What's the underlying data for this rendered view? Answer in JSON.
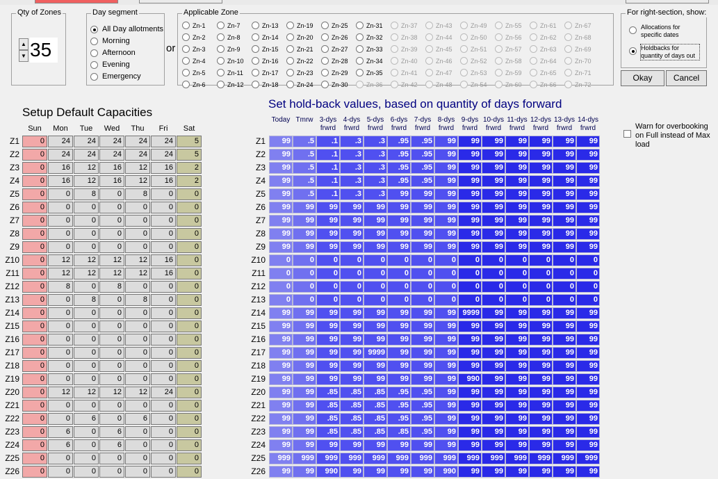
{
  "qty_zones": {
    "label": "Qty of Zones",
    "value": "35"
  },
  "day_segment": {
    "label": "Day segment",
    "options": [
      "All Day allotments",
      "Morning",
      "Afternoon",
      "Evening",
      "Emergency"
    ],
    "selected": 0
  },
  "or_label": "or",
  "applicable_zone": {
    "label": "Applicable Zone",
    "zones": [
      "Zn-1",
      "Zn-2",
      "Zn-3",
      "Zn-4",
      "Zn-5",
      "Zn-6",
      "Zn-7",
      "Zn-8",
      "Zn-9",
      "Zn-10",
      "Zn-11",
      "Zn-12",
      "Zn-13",
      "Zn-14",
      "Zn-15",
      "Zn-16",
      "Zn-17",
      "Zn-18",
      "Zn-19",
      "Zn-20",
      "Zn-21",
      "Zn-22",
      "Zn-23",
      "Zn-24",
      "Zn-25",
      "Zn-26",
      "Zn-27",
      "Zn-28",
      "Zn-29",
      "Zn-30",
      "Zn-31",
      "Zn-32",
      "Zn-33",
      "Zn-34",
      "Zn-35",
      "Zn-36",
      "Zn-37",
      "Zn-38",
      "Zn-39",
      "Zn-40",
      "Zn-41",
      "Zn-42",
      "Zn-43",
      "Zn-44",
      "Zn-45",
      "Zn-46",
      "Zn-47",
      "Zn-48",
      "Zn-49",
      "Zn-50",
      "Zn-51",
      "Zn-52",
      "Zn-53",
      "Zn-54",
      "Zn-55",
      "Zn-56",
      "Zn-57",
      "Zn-58",
      "Zn-59",
      "Zn-60",
      "Zn-61",
      "Zn-62",
      "Zn-63",
      "Zn-64",
      "Zn-65",
      "Zn-66",
      "Zn-67",
      "Zn-68",
      "Zn-69",
      "Zn-70",
      "Zn-71",
      "Zn-72"
    ],
    "enabled_count": 35
  },
  "right_section": {
    "label": "For right-section, show:",
    "options": [
      "Allocations for specific dates",
      "Holdbacks for quantity of days out"
    ],
    "selected": 1
  },
  "buttons": {
    "okay": "Okay",
    "cancel": "Cancel"
  },
  "defaults": {
    "title": "Setup Default Capacities",
    "days": [
      "Sun",
      "Mon",
      "Tue",
      "Wed",
      "Thu",
      "Fri",
      "Sat"
    ],
    "rows": [
      {
        "z": "Z1",
        "v": [
          "0",
          "24",
          "24",
          "24",
          "24",
          "24",
          "5"
        ]
      },
      {
        "z": "Z2",
        "v": [
          "0",
          "24",
          "24",
          "24",
          "24",
          "24",
          "5"
        ]
      },
      {
        "z": "Z3",
        "v": [
          "0",
          "16",
          "12",
          "16",
          "12",
          "16",
          "2"
        ]
      },
      {
        "z": "Z4",
        "v": [
          "0",
          "16",
          "12",
          "16",
          "12",
          "16",
          "2"
        ]
      },
      {
        "z": "Z5",
        "v": [
          "0",
          "0",
          "8",
          "0",
          "8",
          "0",
          "0"
        ]
      },
      {
        "z": "Z6",
        "v": [
          "0",
          "0",
          "0",
          "0",
          "0",
          "0",
          "0"
        ]
      },
      {
        "z": "Z7",
        "v": [
          "0",
          "0",
          "0",
          "0",
          "0",
          "0",
          "0"
        ]
      },
      {
        "z": "Z8",
        "v": [
          "0",
          "0",
          "0",
          "0",
          "0",
          "0",
          "0"
        ]
      },
      {
        "z": "Z9",
        "v": [
          "0",
          "0",
          "0",
          "0",
          "0",
          "0",
          "0"
        ]
      },
      {
        "z": "Z10",
        "v": [
          "0",
          "12",
          "12",
          "12",
          "12",
          "16",
          "0"
        ]
      },
      {
        "z": "Z11",
        "v": [
          "0",
          "12",
          "12",
          "12",
          "12",
          "16",
          "0"
        ]
      },
      {
        "z": "Z12",
        "v": [
          "0",
          "8",
          "0",
          "8",
          "0",
          "0",
          "0"
        ]
      },
      {
        "z": "Z13",
        "v": [
          "0",
          "0",
          "8",
          "0",
          "8",
          "0",
          "0"
        ]
      },
      {
        "z": "Z14",
        "v": [
          "0",
          "0",
          "0",
          "0",
          "0",
          "0",
          "0"
        ]
      },
      {
        "z": "Z15",
        "v": [
          "0",
          "0",
          "0",
          "0",
          "0",
          "0",
          "0"
        ]
      },
      {
        "z": "Z16",
        "v": [
          "0",
          "0",
          "0",
          "0",
          "0",
          "0",
          "0"
        ]
      },
      {
        "z": "Z17",
        "v": [
          "0",
          "0",
          "0",
          "0",
          "0",
          "0",
          "0"
        ]
      },
      {
        "z": "Z18",
        "v": [
          "0",
          "0",
          "0",
          "0",
          "0",
          "0",
          "0"
        ]
      },
      {
        "z": "Z19",
        "v": [
          "0",
          "0",
          "0",
          "0",
          "0",
          "0",
          "0"
        ]
      },
      {
        "z": "Z20",
        "v": [
          "0",
          "12",
          "12",
          "12",
          "12",
          "24",
          "0"
        ]
      },
      {
        "z": "Z21",
        "v": [
          "0",
          "0",
          "0",
          "0",
          "0",
          "0",
          "0"
        ]
      },
      {
        "z": "Z22",
        "v": [
          "0",
          "0",
          "6",
          "0",
          "6",
          "0",
          "0"
        ]
      },
      {
        "z": "Z23",
        "v": [
          "0",
          "6",
          "0",
          "6",
          "0",
          "0",
          "0"
        ]
      },
      {
        "z": "Z24",
        "v": [
          "0",
          "6",
          "0",
          "6",
          "0",
          "0",
          "0"
        ]
      },
      {
        "z": "Z25",
        "v": [
          "0",
          "0",
          "0",
          "0",
          "0",
          "0",
          "0"
        ]
      },
      {
        "z": "Z26",
        "v": [
          "0",
          "0",
          "0",
          "0",
          "0",
          "0",
          "0"
        ]
      }
    ]
  },
  "holdback": {
    "title": "Set hold-back values, based on quantity of days forward",
    "columns": [
      [
        "Today",
        ""
      ],
      [
        "Tmrw",
        ""
      ],
      [
        "3-dys",
        "frwrd"
      ],
      [
        "4-dys",
        "frwrd"
      ],
      [
        "5-dys",
        "frwrd"
      ],
      [
        "6-dys",
        "frwrd"
      ],
      [
        "7-dys",
        "frwrd"
      ],
      [
        "8-dys",
        "frwrd"
      ],
      [
        "9-dys",
        "frwrd"
      ],
      [
        "10-dys",
        "frwrd"
      ],
      [
        "11-dys",
        "frwrd"
      ],
      [
        "12-dys",
        "frwrd"
      ],
      [
        "13-dys",
        "frwrd"
      ],
      [
        "14-dys",
        "frwrd"
      ]
    ],
    "rows": [
      {
        "z": "Z1",
        "v": [
          "99",
          ".5",
          ".1",
          ".3",
          ".3",
          ".95",
          ".95",
          "99",
          "99",
          "99",
          "99",
          "99",
          "99",
          "99"
        ]
      },
      {
        "z": "Z2",
        "v": [
          "99",
          ".5",
          ".1",
          ".3",
          ".3",
          ".95",
          ".95",
          "99",
          "99",
          "99",
          "99",
          "99",
          "99",
          "99"
        ]
      },
      {
        "z": "Z3",
        "v": [
          "99",
          ".5",
          ".1",
          ".3",
          ".3",
          ".95",
          ".95",
          "99",
          "99",
          "99",
          "99",
          "99",
          "99",
          "99"
        ]
      },
      {
        "z": "Z4",
        "v": [
          "99",
          ".5",
          ".1",
          ".3",
          ".3",
          ".95",
          ".95",
          "99",
          "99",
          "99",
          "99",
          "99",
          "99",
          "99"
        ]
      },
      {
        "z": "Z5",
        "v": [
          "99",
          ".5",
          ".1",
          ".3",
          ".3",
          "99",
          "99",
          "99",
          "99",
          "99",
          "99",
          "99",
          "99",
          "99"
        ]
      },
      {
        "z": "Z6",
        "v": [
          "99",
          "99",
          "99",
          "99",
          "99",
          "99",
          "99",
          "99",
          "99",
          "99",
          "99",
          "99",
          "99",
          "99"
        ]
      },
      {
        "z": "Z7",
        "v": [
          "99",
          "99",
          "99",
          "99",
          "99",
          "99",
          "99",
          "99",
          "99",
          "99",
          "99",
          "99",
          "99",
          "99"
        ]
      },
      {
        "z": "Z8",
        "v": [
          "99",
          "99",
          "99",
          "99",
          "99",
          "99",
          "99",
          "99",
          "99",
          "99",
          "99",
          "99",
          "99",
          "99"
        ]
      },
      {
        "z": "Z9",
        "v": [
          "99",
          "99",
          "99",
          "99",
          "99",
          "99",
          "99",
          "99",
          "99",
          "99",
          "99",
          "99",
          "99",
          "99"
        ]
      },
      {
        "z": "Z10",
        "v": [
          "0",
          "0",
          "0",
          "0",
          "0",
          "0",
          "0",
          "0",
          "0",
          "0",
          "0",
          "0",
          "0",
          "0"
        ]
      },
      {
        "z": "Z11",
        "v": [
          "0",
          "0",
          "0",
          "0",
          "0",
          "0",
          "0",
          "0",
          "0",
          "0",
          "0",
          "0",
          "0",
          "0"
        ]
      },
      {
        "z": "Z12",
        "v": [
          "0",
          "0",
          "0",
          "0",
          "0",
          "0",
          "0",
          "0",
          "0",
          "0",
          "0",
          "0",
          "0",
          "0"
        ]
      },
      {
        "z": "Z13",
        "v": [
          "0",
          "0",
          "0",
          "0",
          "0",
          "0",
          "0",
          "0",
          "0",
          "0",
          "0",
          "0",
          "0",
          "0"
        ]
      },
      {
        "z": "Z14",
        "v": [
          "99",
          "99",
          "99",
          "99",
          "99",
          "99",
          "99",
          "99",
          "9999",
          "99",
          "99",
          "99",
          "99",
          "99"
        ]
      },
      {
        "z": "Z15",
        "v": [
          "99",
          "99",
          "99",
          "99",
          "99",
          "99",
          "99",
          "99",
          "99",
          "99",
          "99",
          "99",
          "99",
          "99"
        ]
      },
      {
        "z": "Z16",
        "v": [
          "99",
          "99",
          "99",
          "99",
          "99",
          "99",
          "99",
          "99",
          "99",
          "99",
          "99",
          "99",
          "99",
          "99"
        ]
      },
      {
        "z": "Z17",
        "v": [
          "99",
          "99",
          "99",
          "99",
          "9999",
          "99",
          "99",
          "99",
          "99",
          "99",
          "99",
          "99",
          "99",
          "99"
        ]
      },
      {
        "z": "Z18",
        "v": [
          "99",
          "99",
          "99",
          "99",
          "99",
          "99",
          "99",
          "99",
          "99",
          "99",
          "99",
          "99",
          "99",
          "99"
        ]
      },
      {
        "z": "Z19",
        "v": [
          "99",
          "99",
          "99",
          "99",
          "99",
          "99",
          "99",
          "99",
          "990",
          "99",
          "99",
          "99",
          "99",
          "99"
        ]
      },
      {
        "z": "Z20",
        "v": [
          "99",
          "99",
          ".85",
          ".85",
          ".85",
          ".95",
          ".95",
          "99",
          "99",
          "99",
          "99",
          "99",
          "99",
          "99"
        ]
      },
      {
        "z": "Z21",
        "v": [
          "99",
          "99",
          ".85",
          ".85",
          ".85",
          ".95",
          ".95",
          "99",
          "99",
          "99",
          "99",
          "99",
          "99",
          "99"
        ]
      },
      {
        "z": "Z22",
        "v": [
          "99",
          "99",
          ".85",
          ".85",
          ".85",
          ".95",
          ".95",
          "99",
          "99",
          "99",
          "99",
          "99",
          "99",
          "99"
        ]
      },
      {
        "z": "Z23",
        "v": [
          "99",
          "99",
          ".85",
          ".85",
          ".85",
          ".85",
          ".95",
          "99",
          "99",
          "99",
          "99",
          "99",
          "99",
          "99"
        ]
      },
      {
        "z": "Z24",
        "v": [
          "99",
          "99",
          "99",
          "99",
          "99",
          "99",
          "99",
          "99",
          "99",
          "99",
          "99",
          "99",
          "99",
          "99"
        ]
      },
      {
        "z": "Z25",
        "v": [
          "999",
          "999",
          "999",
          "999",
          "999",
          "999",
          "999",
          "999",
          "999",
          "999",
          "999",
          "999",
          "999",
          "999"
        ]
      },
      {
        "z": "Z26",
        "v": [
          "99",
          "99",
          "990",
          "99",
          "99",
          "99",
          "99",
          "990",
          "99",
          "99",
          "99",
          "99",
          "99",
          "99"
        ]
      }
    ]
  },
  "warn_overbooking": {
    "label": "Warn for overbooking on Full instead of Max load",
    "checked": false
  },
  "colors": {
    "sun": "#f2a8a8",
    "sat": "#c8c8a0",
    "weekday": "#dcdcdc",
    "hb_today": "#8080f0",
    "hb_tmrw": "#7070f0",
    "hb_mid": "#5050f0",
    "hb_far": "#2a2ae8",
    "title_blue": "#000080"
  }
}
